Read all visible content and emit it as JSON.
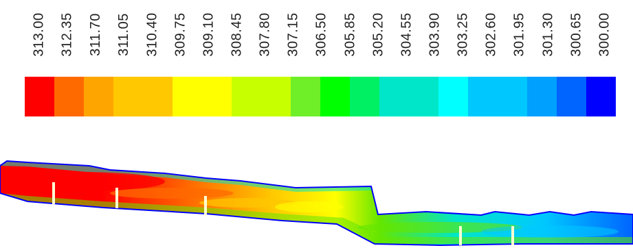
{
  "legend": {
    "labels": [
      "313.00",
      "312.35",
      "311.70",
      "311.05",
      "310.40",
      "309.75",
      "309.10",
      "308.45",
      "307.80",
      "307.15",
      "306.50",
      "305.85",
      "305.20",
      "304.55",
      "303.90",
      "303.25",
      "302.60",
      "301.95",
      "301.30",
      "300.65",
      "300.00"
    ],
    "colors": [
      "#ff0000",
      "#ff6a00",
      "#ffa500",
      "#ffc800",
      "#ffff00",
      "#c8ff00",
      "#6eef28",
      "#00ff00",
      "#00f064",
      "#00e6c8",
      "#00ffff",
      "#00c8ff",
      "#00a0ff",
      "#0064ff",
      "#0000ff"
    ]
  },
  "plot": {
    "colors": {
      "hot": "#ff0000",
      "warm": "#ff6a00",
      "mid": "#ffc800",
      "yellow": "#ffff00",
      "green": "#64e600",
      "cyan": "#00e6c8",
      "cool": "#00c8ff",
      "cold": "#0064ff",
      "outline": "#0000ff",
      "vane": "#ffffd2"
    }
  }
}
